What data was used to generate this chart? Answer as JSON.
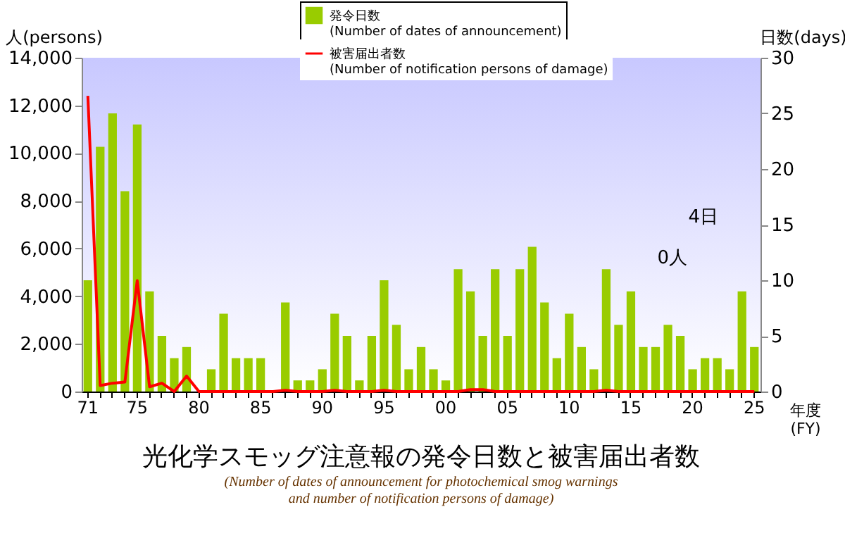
{
  "chart_data": {
    "type": "bar",
    "title": "光化学スモッグ注意報の発令日数と被害届出者数",
    "subtitle": "(Number of dates of announcement for photochemical smog warnings\nand number of notification persons of damage)",
    "xlabel": "年度\n(FY)",
    "ylabel": "人(persons)",
    "y2label": "日数(days)",
    "categories": [
      "71",
      null,
      null,
      null,
      "75",
      null,
      null,
      null,
      null,
      "80",
      null,
      null,
      null,
      null,
      "85",
      null,
      null,
      null,
      null,
      "90",
      null,
      null,
      null,
      null,
      "95",
      null,
      null,
      null,
      null,
      "00",
      null,
      null,
      null,
      null,
      "05",
      null,
      null,
      null,
      null,
      "10",
      null,
      null,
      null,
      null,
      "15",
      null,
      null,
      null,
      null,
      "20",
      null,
      null,
      null,
      null,
      "25"
    ],
    "series": [
      {
        "name": "発令日数\n(Number of dates of announcement)",
        "axis": "y2",
        "color": "#99cc00",
        "values": [
          10,
          22,
          25,
          18,
          24,
          9,
          5,
          3,
          4,
          0,
          2,
          7,
          3,
          3,
          3,
          0,
          8,
          1,
          1,
          2,
          7,
          5,
          1,
          5,
          10,
          6,
          2,
          4,
          2,
          1,
          11,
          9,
          5,
          11,
          5,
          11,
          13,
          8,
          3,
          7,
          4,
          2,
          11,
          6,
          9,
          4,
          4,
          6,
          5,
          2,
          3,
          3,
          2,
          9,
          4
        ]
      },
      {
        "name": "被害届出者数\n(Number of notification persons of damage)",
        "type": "line",
        "color": "#ff0000",
        "values": [
          12400,
          250,
          350,
          400,
          4650,
          200,
          350,
          0,
          650,
          0,
          0,
          0,
          0,
          0,
          0,
          0,
          50,
          0,
          0,
          0,
          50,
          0,
          0,
          0,
          50,
          0,
          0,
          0,
          0,
          0,
          0,
          80,
          80,
          0,
          0,
          0,
          0,
          0,
          0,
          0,
          0,
          0,
          50,
          0,
          0,
          0,
          0,
          0,
          0,
          0,
          0,
          0,
          0,
          0,
          0
        ]
      }
    ],
    "ylim": [
      0,
      14000
    ],
    "yticks": [
      0,
      {
        "value": 2000,
        "label": "2,000"
      },
      {
        "value": 4000,
        "label": "4,000"
      },
      {
        "value": 6000,
        "label": "6,000"
      },
      {
        "value": 8000,
        "label": "8,000"
      },
      {
        "value": 10000,
        "label": "10,000"
      },
      {
        "value": 12000,
        "label": "12,000"
      },
      {
        "value": 14000,
        "label": "14,000"
      }
    ],
    "y2lim": [
      0,
      30
    ],
    "y2ticks": [
      0,
      5,
      10,
      15,
      20,
      25,
      30
    ],
    "annotations": [
      "4日",
      "0人"
    ],
    "legend": "top",
    "grid": false
  }
}
